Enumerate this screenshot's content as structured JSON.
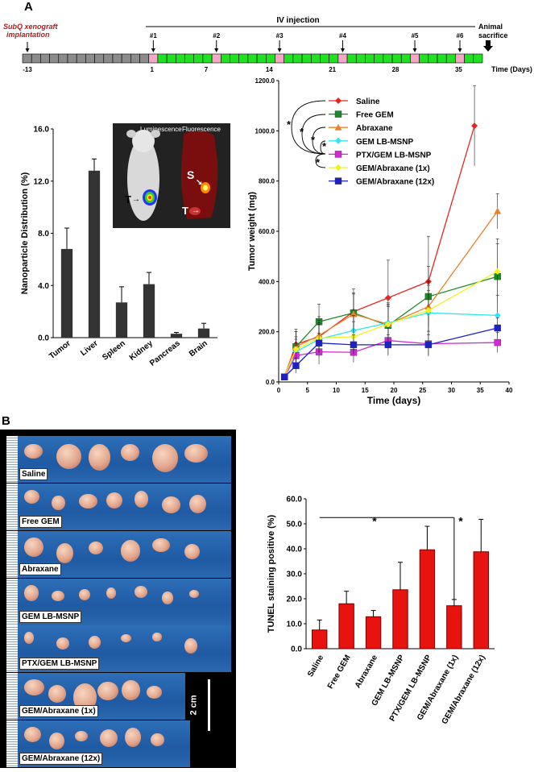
{
  "panels": {
    "a": "A",
    "b": "B"
  },
  "timeline": {
    "iv_label": "IV injection",
    "left_label": "SubQ xenograft\nimplantation",
    "sacrifice_label": "Animal\nsacrifice",
    "time_label": "Time (Days)",
    "injections": [
      "#1",
      "#2",
      "#3",
      "#4",
      "#5",
      "#6"
    ],
    "day_ticks": [
      "-13",
      "1",
      "7",
      "14",
      "21",
      "28",
      "35"
    ],
    "colors": {
      "grey": "#8c8c8c",
      "pink": "#f4a7c6",
      "green": "#22e022"
    }
  },
  "inset": {
    "luminescence": "Luminescence",
    "fluorescence": "Fluorescence",
    "t_mark": "T",
    "s_mark": "S"
  },
  "scale_bar": "2 cm",
  "photo_labels": [
    "Saline",
    "Free GEM",
    "Abraxane",
    "GEM LB-MSNP",
    "PTX/GEM LB-MSNP",
    "GEM/Abraxane (1x)",
    "GEM/Abraxane (12x)"
  ],
  "chart_data": [
    {
      "type": "bar",
      "ylabel": "Nanoparticle Distribution (%)",
      "categories": [
        "Tumor",
        "Liver",
        "Spleen",
        "Kidney",
        "Pancreas",
        "Brain"
      ],
      "values": [
        6.8,
        12.8,
        2.7,
        4.1,
        0.3,
        0.7
      ],
      "errors": [
        1.6,
        0.9,
        1.2,
        0.9,
        0.1,
        0.4
      ],
      "ylim": [
        0,
        16
      ],
      "yticks": [
        "0.0",
        "4.0",
        "8.0",
        "12.0",
        "16.0"
      ],
      "color": "#333333"
    },
    {
      "type": "line",
      "xlabel": "Time (days)",
      "ylabel": "Tumor weight (mg)",
      "xlim": [
        0,
        40
      ],
      "ylim": [
        0,
        1200
      ],
      "xticks": [
        "0",
        "5",
        "10",
        "15",
        "20",
        "25",
        "30",
        "35",
        "40"
      ],
      "yticks": [
        "0.0",
        "200.0",
        "400.0",
        "600.0",
        "800.0",
        "1000.0",
        "1200.0"
      ],
      "series": [
        {
          "name": "Saline",
          "color": "#e52620",
          "marker": "diamond",
          "x": [
            1,
            3,
            7,
            13,
            19,
            26,
            34
          ],
          "values": [
            20,
            150,
            180,
            280,
            335,
            400,
            1020
          ],
          "errors": [
            10,
            60,
            80,
            90,
            150,
            180,
            160
          ]
        },
        {
          "name": "Free GEM",
          "color": "#1f8a2a",
          "marker": "square",
          "x": [
            1,
            3,
            7,
            13,
            19,
            26,
            38
          ],
          "values": [
            20,
            140,
            240,
            275,
            225,
            340,
            420
          ],
          "errors": [
            10,
            60,
            70,
            80,
            80,
            120,
            150
          ]
        },
        {
          "name": "Abraxane",
          "color": "#e8832b",
          "marker": "triangle",
          "x": [
            1,
            3,
            7,
            13,
            19,
            26,
            38
          ],
          "values": [
            20,
            140,
            185,
            270,
            230,
            300,
            680
          ],
          "errors": [
            10,
            60,
            60,
            80,
            80,
            100,
            70
          ]
        },
        {
          "name": "GEM LB-MSNP",
          "color": "#2ee6f0",
          "marker": "diamond",
          "x": [
            1,
            3,
            7,
            13,
            19,
            26,
            38
          ],
          "values": [
            20,
            120,
            170,
            205,
            235,
            275,
            265
          ],
          "errors": [
            10,
            50,
            60,
            60,
            80,
            90,
            80
          ]
        },
        {
          "name": "PTX/GEM LB-MSNP",
          "color": "#d12ad6",
          "marker": "square",
          "x": [
            1,
            3,
            7,
            13,
            19,
            26,
            38
          ],
          "values": [
            20,
            105,
            120,
            118,
            165,
            152,
            157
          ],
          "errors": [
            10,
            40,
            50,
            40,
            60,
            50,
            40
          ]
        },
        {
          "name": "GEM/Abraxane (1x)",
          "color": "#f2f21c",
          "marker": "diamond",
          "x": [
            1,
            3,
            7,
            13,
            19,
            26,
            38
          ],
          "values": [
            20,
            130,
            175,
            180,
            230,
            285,
            440
          ],
          "errors": [
            10,
            50,
            60,
            60,
            70,
            100,
            110
          ]
        },
        {
          "name": "GEM/Abraxane (12x)",
          "color": "#1c22c2",
          "marker": "square",
          "x": [
            1,
            3,
            7,
            13,
            19,
            26,
            38
          ],
          "values": [
            20,
            65,
            155,
            148,
            148,
            148,
            215
          ],
          "errors": [
            10,
            30,
            40,
            40,
            40,
            40,
            40
          ]
        }
      ],
      "significance": [
        "*",
        "*",
        "*",
        "*",
        "*"
      ]
    },
    {
      "type": "bar",
      "ylabel": "TUNEL staining positive (%)",
      "categories": [
        "Saline",
        "Free GEM",
        "Abraxane",
        "GEM LB-MSNP",
        "PTX/GEM LB-MSNP",
        "GEM/Abraxane (1x)",
        "GEM/Abraxane (12x)"
      ],
      "values": [
        7.5,
        18,
        12.8,
        23.6,
        39.6,
        17.2,
        38.8
      ],
      "errors": [
        4,
        5,
        2.5,
        11,
        9.4,
        2.5,
        13
      ],
      "ylim": [
        0,
        60
      ],
      "yticks": [
        "0.0",
        "10.0",
        "20.0",
        "30.0",
        "40.0",
        "50.0",
        "60.0"
      ],
      "color": "#e8120e",
      "significance": [
        "*",
        "*"
      ]
    }
  ]
}
